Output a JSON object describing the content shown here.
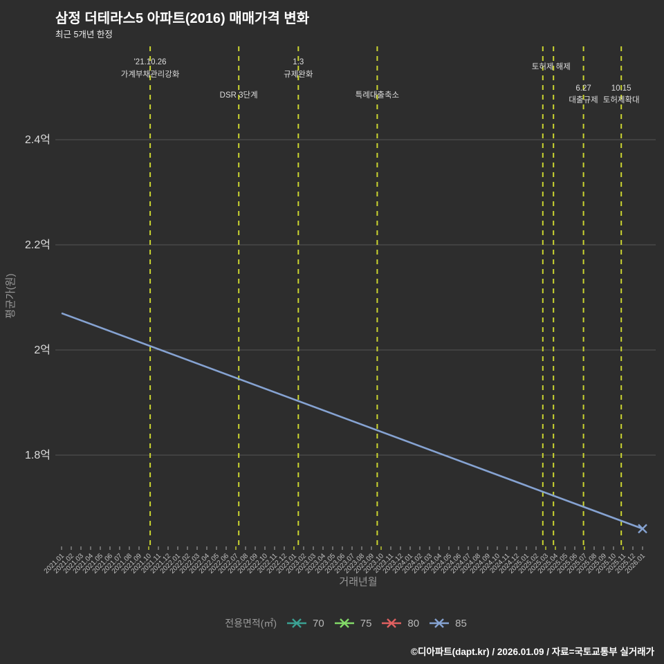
{
  "title": "삼정 더테라스5 아파트(2016) 매매가격 변화",
  "subtitle": "최근 5개년 한정",
  "footer": "©디아파트(dapt.kr) / 2026.01.09 / 자료=국토교통부 실거래가",
  "legend": {
    "label": "전용면적(㎡)",
    "items": [
      {
        "name": "70",
        "color": "#3ba193"
      },
      {
        "name": "75",
        "color": "#83da68"
      },
      {
        "name": "80",
        "color": "#e06060"
      },
      {
        "name": "85",
        "color": "#86a3d2"
      }
    ]
  },
  "chart_data": {
    "type": "line",
    "title": "삼정 더테라스5 아파트(2016) 매매가격 변화",
    "subtitle": "최근 5개년 한정",
    "xlabel": "거래년월",
    "ylabel": "평균가(원)",
    "unit": "억원",
    "ylim": [
      1.62,
      2.58
    ],
    "grid": true,
    "legend_position": "bottom",
    "y_ticks": [
      {
        "label": "2.4억",
        "value": 2.4
      },
      {
        "label": "2.2억",
        "value": 2.2
      },
      {
        "label": "2억",
        "value": 2.0
      },
      {
        "label": "1.8억",
        "value": 1.8
      }
    ],
    "x_categories": [
      "2021.01",
      "2021.02",
      "2021.03",
      "2021.04",
      "2021.05",
      "2021.06",
      "2021.07",
      "2021.08",
      "2021.09",
      "2021.10",
      "2021.11",
      "2021.12",
      "2022.01",
      "2022.02",
      "2022.03",
      "2022.04",
      "2022.05",
      "2022.06",
      "2022.07",
      "2022.08",
      "2022.09",
      "2022.10",
      "2022.11",
      "2022.12",
      "2023.01",
      "2023.02",
      "2023.03",
      "2023.04",
      "2023.05",
      "2023.06",
      "2023.07",
      "2023.08",
      "2023.09",
      "2023.10",
      "2023.11",
      "2023.12",
      "2024.01",
      "2024.02",
      "2024.03",
      "2024.04",
      "2024.05",
      "2024.06",
      "2024.07",
      "2024.08",
      "2024.09",
      "2024.10",
      "2024.11",
      "2024.12",
      "2025.01",
      "2025.02",
      "2025.03",
      "2025.04",
      "2025.05",
      "2025.06",
      "2025.07",
      "2025.08",
      "2025.09",
      "2025.10",
      "2025.11",
      "2025.12",
      "2026.01"
    ],
    "series": [
      {
        "name": "70",
        "color": "#3ba193",
        "points": []
      },
      {
        "name": "75",
        "color": "#83da68",
        "points": []
      },
      {
        "name": "80",
        "color": "#e06060",
        "points": []
      },
      {
        "name": "85",
        "color": "#86a3d2",
        "points": [
          {
            "x": "2021.01",
            "y": 2.07
          },
          {
            "x": "2026.01",
            "y": 1.66
          }
        ]
      }
    ],
    "events": [
      {
        "xi": 9.15,
        "lines": [
          "'21.10.26",
          "가계부채관리강화"
        ],
        "row": "top2"
      },
      {
        "xi": 18.3,
        "lines": [
          "DSR 3단계"
        ],
        "row": "mid1"
      },
      {
        "xi": 24.45,
        "lines": [
          "1.3",
          "규제완화"
        ],
        "row": "top2"
      },
      {
        "xi": 32.6,
        "lines": [
          "특례대출축소"
        ],
        "row": "mid1"
      },
      {
        "xi": 49.7,
        "lines": [
          "토허제 해제"
        ],
        "row": "top1",
        "label_dx": 12
      },
      {
        "xi": 50.8,
        "lines": [],
        "row": "top1"
      },
      {
        "xi": 53.9,
        "lines": [
          "6.27",
          "대출규제"
        ],
        "row": "low2"
      },
      {
        "xi": 57.8,
        "lines": [
          "10.15",
          "토허제확대"
        ],
        "row": "low2"
      }
    ],
    "colors": {
      "background": "#2d2d2d",
      "grid": "#555555",
      "event_line": "#ccd630",
      "tick": "#8a8a8a",
      "x_tick_label": "#c0c0c0",
      "y_tick_label": "#dcdcdc",
      "axis_title": "#999999",
      "annotation_text": "#dddddd"
    }
  }
}
